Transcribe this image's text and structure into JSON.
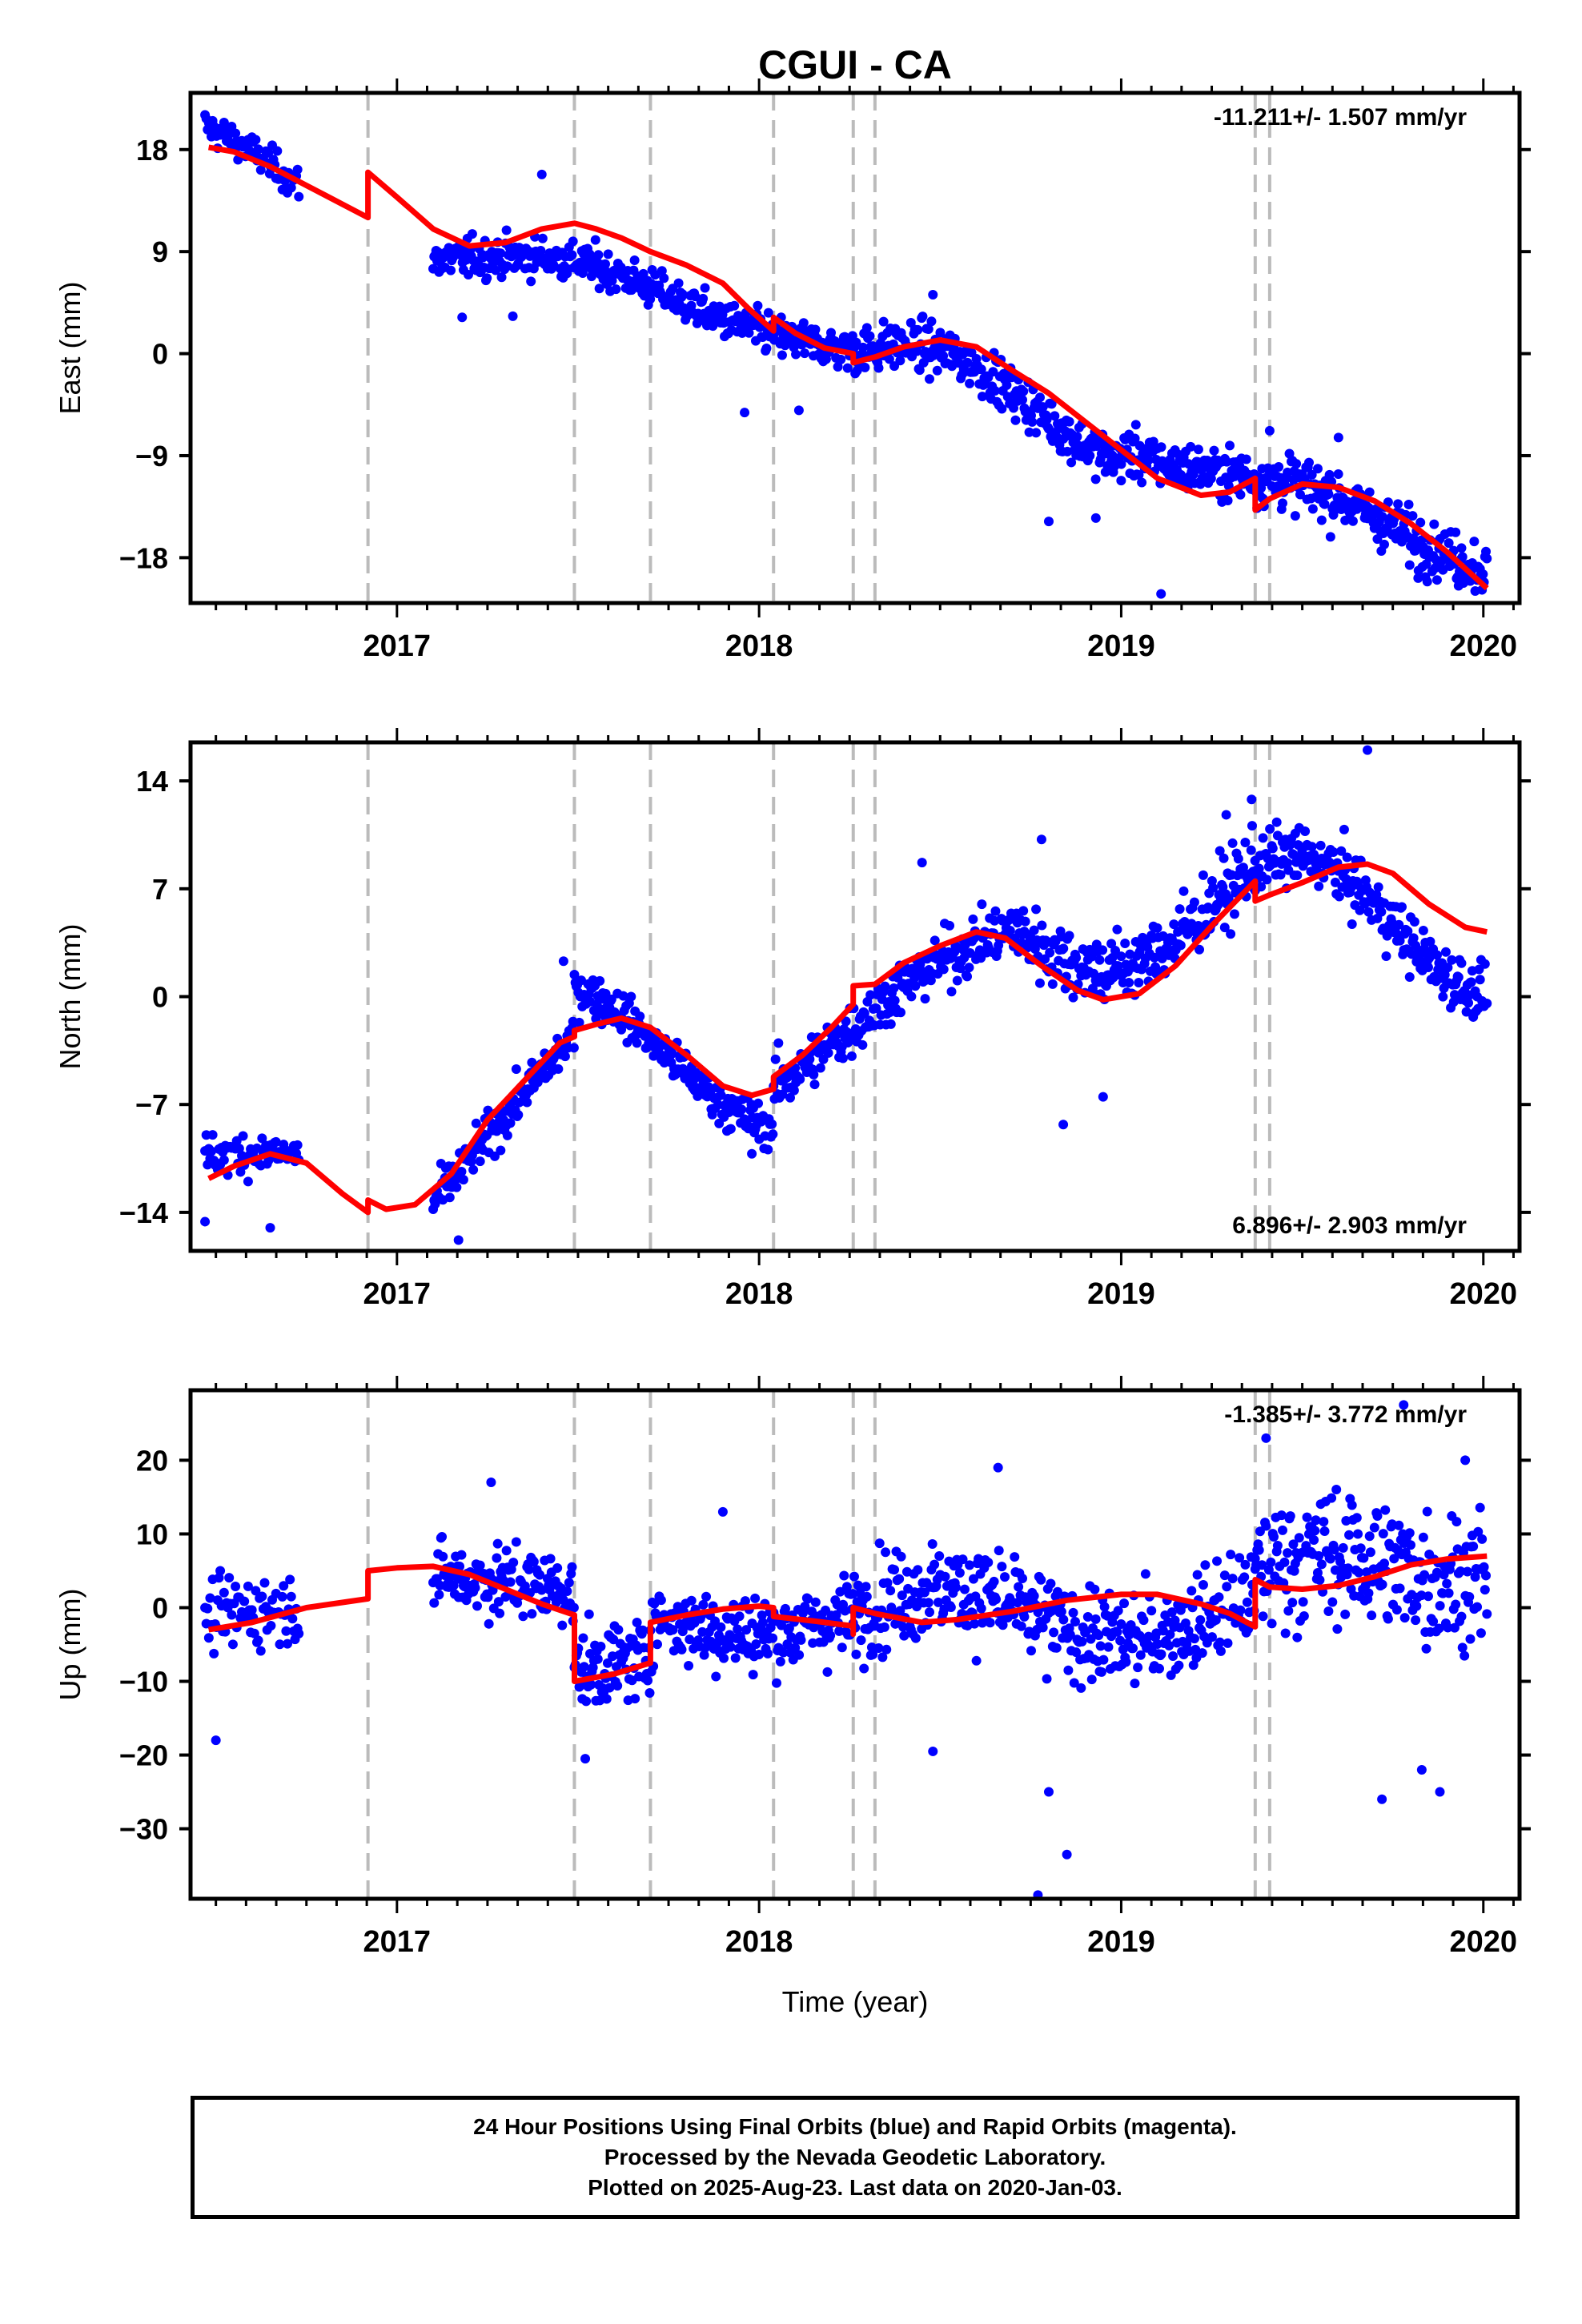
{
  "title": "CGUI - CA",
  "x_axis_label": "Time (year)",
  "footer": [
    "24 Hour Positions Using Final Orbits (blue) and Rapid Orbits (magenta).",
    "Processed by the Nevada Geodetic Laboratory.",
    "Plotted on 2025-Aug-23. Last data on 2020-Jan-03."
  ],
  "colors": {
    "data_points": "#0000ff",
    "model_fit": "#ff0000",
    "event_lines": "#bbbbbb",
    "frame": "#000000"
  },
  "chart_data": [
    {
      "type": "scatter",
      "component": "east",
      "ylabel": "East (mm)",
      "xlabel": "",
      "xlim": [
        2016.43,
        2020.1
      ],
      "ylim": [
        -22,
        23
      ],
      "x_ticks": [
        2017,
        2018,
        2019,
        2020
      ],
      "y_ticks": [
        18,
        9,
        0,
        -9,
        -18
      ],
      "rate_label": "-11.211+/- 1.507 mm/yr",
      "rate_position": "top-right",
      "event_lines": [
        2016.92,
        2017.49,
        2017.7,
        2018.04,
        2018.26,
        2018.32,
        2019.37,
        2019.41
      ],
      "model": [
        [
          2016.48,
          18.2
        ],
        [
          2016.55,
          17.8
        ],
        [
          2016.65,
          16.5
        ],
        [
          2016.8,
          14.0
        ],
        [
          2016.92,
          12.0
        ],
        [
          2016.92,
          16.0
        ],
        [
          2017.0,
          13.8
        ],
        [
          2017.1,
          11.0
        ],
        [
          2017.2,
          9.5
        ],
        [
          2017.3,
          9.8
        ],
        [
          2017.4,
          11.0
        ],
        [
          2017.49,
          11.5
        ],
        [
          2017.55,
          11.0
        ],
        [
          2017.62,
          10.2
        ],
        [
          2017.7,
          9.0
        ],
        [
          2017.8,
          7.8
        ],
        [
          2017.9,
          6.2
        ],
        [
          2017.97,
          4.0
        ],
        [
          2018.04,
          2.0
        ],
        [
          2018.04,
          3.2
        ],
        [
          2018.1,
          1.8
        ],
        [
          2018.18,
          0.5
        ],
        [
          2018.26,
          0.0
        ],
        [
          2018.26,
          -0.8
        ],
        [
          2018.32,
          -0.3
        ],
        [
          2018.4,
          0.6
        ],
        [
          2018.5,
          1.2
        ],
        [
          2018.6,
          0.6
        ],
        [
          2018.7,
          -1.5
        ],
        [
          2018.8,
          -3.5
        ],
        [
          2018.9,
          -6.0
        ],
        [
          2019.0,
          -8.5
        ],
        [
          2019.1,
          -11.0
        ],
        [
          2019.22,
          -12.5
        ],
        [
          2019.3,
          -12.2
        ],
        [
          2019.37,
          -11.0
        ],
        [
          2019.37,
          -13.8
        ],
        [
          2019.41,
          -12.8
        ],
        [
          2019.5,
          -11.5
        ],
        [
          2019.6,
          -11.8
        ],
        [
          2019.7,
          -13.0
        ],
        [
          2019.8,
          -15.0
        ],
        [
          2019.9,
          -17.5
        ],
        [
          2020.01,
          -20.7
        ]
      ],
      "segments": [
        {
          "x": [
            2016.47,
            2016.73
          ],
          "trend": [
            18.6,
            14.6
          ],
          "season_amp": 1.5,
          "noise": 1.4,
          "step": 0.0035
        },
        {
          "x": [
            2017.1,
            2017.98
          ],
          "trend": [
            9.5,
            3.5
          ],
          "season_amp": 1.3,
          "noise": 1.6,
          "step": 0.0027
        },
        {
          "x": [
            2017.98,
            2018.26
          ],
          "trend": [
            3.0,
            0.3
          ],
          "season_amp": 0.8,
          "noise": 1.7,
          "step": 0.0027
        },
        {
          "x": [
            2018.26,
            2019.0
          ],
          "trend": [
            0.0,
            -7.0
          ],
          "season_amp": 2.5,
          "noise": 2.0,
          "step": 0.0027
        },
        {
          "x": [
            2019.0,
            2019.37
          ],
          "trend": [
            -7.0,
            -12.0
          ],
          "season_amp": 1.5,
          "noise": 2.0,
          "step": 0.0027
        },
        {
          "x": [
            2019.37,
            2020.01
          ],
          "trend": [
            -12.0,
            -17.5
          ],
          "season_amp": 1.5,
          "noise": 2.2,
          "step": 0.0027
        }
      ],
      "outliers": [
        [
          2017.96,
          -5.2
        ],
        [
          2018.11,
          -5.0
        ],
        [
          2018.8,
          -14.8
        ],
        [
          2018.93,
          -14.5
        ],
        [
          2019.11,
          -21.2
        ],
        [
          2019.41,
          -6.8
        ],
        [
          2019.6,
          -7.4
        ],
        [
          2019.82,
          -19.8
        ],
        [
          2017.18,
          3.2
        ],
        [
          2017.32,
          3.3
        ],
        [
          2017.4,
          15.8
        ],
        [
          2018.48,
          5.2
        ]
      ]
    },
    {
      "type": "scatter",
      "component": "north",
      "ylabel": "North (mm)",
      "xlabel": "",
      "xlim": [
        2016.43,
        2020.1
      ],
      "ylim": [
        -16.5,
        16.5
      ],
      "x_ticks": [
        2017,
        2018,
        2019,
        2020
      ],
      "y_ticks": [
        14,
        7,
        0,
        -7,
        -14
      ],
      "rate_label": "6.896+/- 2.903 mm/yr",
      "rate_position": "bottom-right",
      "event_lines": [
        2016.92,
        2017.49,
        2017.7,
        2018.04,
        2018.26,
        2018.32,
        2019.37,
        2019.41
      ],
      "model": [
        [
          2016.48,
          -11.8
        ],
        [
          2016.55,
          -11.0
        ],
        [
          2016.65,
          -10.2
        ],
        [
          2016.75,
          -10.8
        ],
        [
          2016.85,
          -12.8
        ],
        [
          2016.92,
          -14.0
        ],
        [
          2016.92,
          -13.2
        ],
        [
          2016.97,
          -13.8
        ],
        [
          2017.05,
          -13.5
        ],
        [
          2017.15,
          -11.5
        ],
        [
          2017.25,
          -8.0
        ],
        [
          2017.35,
          -5.5
        ],
        [
          2017.45,
          -3.0
        ],
        [
          2017.49,
          -2.6
        ],
        [
          2017.49,
          -2.2
        ],
        [
          2017.55,
          -1.8
        ],
        [
          2017.62,
          -1.4
        ],
        [
          2017.7,
          -2.0
        ],
        [
          2017.8,
          -3.8
        ],
        [
          2017.9,
          -5.8
        ],
        [
          2017.98,
          -6.4
        ],
        [
          2018.04,
          -6.0
        ],
        [
          2018.04,
          -5.2
        ],
        [
          2018.12,
          -3.8
        ],
        [
          2018.2,
          -2.0
        ],
        [
          2018.26,
          -0.5
        ],
        [
          2018.26,
          0.7
        ],
        [
          2018.32,
          0.8
        ],
        [
          2018.4,
          2.2
        ],
        [
          2018.5,
          3.3
        ],
        [
          2018.6,
          4.2
        ],
        [
          2018.68,
          3.8
        ],
        [
          2018.78,
          2.0
        ],
        [
          2018.88,
          0.4
        ],
        [
          2018.95,
          -0.2
        ],
        [
          2019.05,
          0.2
        ],
        [
          2019.15,
          2.0
        ],
        [
          2019.25,
          4.6
        ],
        [
          2019.37,
          7.5
        ],
        [
          2019.37,
          6.2
        ],
        [
          2019.41,
          6.6
        ],
        [
          2019.5,
          7.4
        ],
        [
          2019.6,
          8.4
        ],
        [
          2019.68,
          8.6
        ],
        [
          2019.75,
          8.0
        ],
        [
          2019.85,
          6.0
        ],
        [
          2019.95,
          4.5
        ],
        [
          2020.01,
          4.2
        ]
      ],
      "segments": [
        {
          "x": [
            2016.47,
            2016.73
          ],
          "trend": [
            -10.8,
            -10.3
          ],
          "season_amp": 0.5,
          "noise": 1.3,
          "step": 0.0035
        },
        {
          "x": [
            2017.1,
            2017.49
          ],
          "trend": [
            -13.0,
            -3.0
          ],
          "season_amp": 0.5,
          "noise": 1.3,
          "step": 0.0027
        },
        {
          "x": [
            2017.49,
            2018.04
          ],
          "trend": [
            -2.0,
            -6.0
          ],
          "season_amp": 2.5,
          "noise": 1.3,
          "step": 0.0027
        },
        {
          "x": [
            2018.04,
            2018.7
          ],
          "trend": [
            -5.0,
            4.0
          ],
          "season_amp": 1.0,
          "noise": 1.7,
          "step": 0.0027
        },
        {
          "x": [
            2018.7,
            2019.37
          ],
          "trend": [
            3.5,
            6.5
          ],
          "season_amp": 3.0,
          "noise": 2.2,
          "step": 0.0027
        },
        {
          "x": [
            2019.37,
            2020.01
          ],
          "trend": [
            6.0,
            3.8
          ],
          "season_amp": 3.5,
          "noise": 1.8,
          "step": 0.0027
        }
      ],
      "outliers": [
        [
          2019.68,
          16.0
        ],
        [
          2019.36,
          12.8
        ],
        [
          2019.29,
          11.8
        ],
        [
          2018.78,
          10.2
        ],
        [
          2017.46,
          2.3
        ],
        [
          2018.84,
          -8.3
        ],
        [
          2017.98,
          -10.2
        ],
        [
          2017.17,
          -15.8
        ],
        [
          2016.47,
          -14.6
        ],
        [
          2016.65,
          -15.0
        ],
        [
          2018.45,
          8.7
        ],
        [
          2018.95,
          -6.5
        ]
      ]
    },
    {
      "type": "scatter",
      "component": "up",
      "ylabel": "Up (mm)",
      "xlabel": "Time (year)",
      "xlim": [
        2016.43,
        2020.1
      ],
      "ylim": [
        -39.5,
        29.5
      ],
      "x_ticks": [
        2017,
        2018,
        2019,
        2020
      ],
      "y_ticks": [
        20,
        10,
        0,
        -10,
        -20,
        -30
      ],
      "rate_label": "-1.385+/- 3.772 mm/yr",
      "rate_position": "top-right",
      "event_lines": [
        2016.92,
        2017.49,
        2017.7,
        2018.04,
        2018.26,
        2018.32,
        2019.37,
        2019.41
      ],
      "model": [
        [
          2016.48,
          -3.0
        ],
        [
          2016.6,
          -2.0
        ],
        [
          2016.75,
          0.0
        ],
        [
          2016.92,
          1.2
        ],
        [
          2016.92,
          5.0
        ],
        [
          2017.0,
          5.4
        ],
        [
          2017.1,
          5.6
        ],
        [
          2017.2,
          4.5
        ],
        [
          2017.3,
          2.5
        ],
        [
          2017.4,
          0.5
        ],
        [
          2017.49,
          -1.0
        ],
        [
          2017.49,
          -10.0
        ],
        [
          2017.6,
          -9.0
        ],
        [
          2017.7,
          -7.5
        ],
        [
          2017.7,
          -2.0
        ],
        [
          2017.8,
          -1.0
        ],
        [
          2017.9,
          -0.2
        ],
        [
          2018.0,
          0.2
        ],
        [
          2018.04,
          0.0
        ],
        [
          2018.04,
          -1.2
        ],
        [
          2018.15,
          -1.8
        ],
        [
          2018.26,
          -2.5
        ],
        [
          2018.26,
          -3.6
        ],
        [
          2018.26,
          0.0
        ],
        [
          2018.32,
          -0.8
        ],
        [
          2018.45,
          -2.0
        ],
        [
          2018.55,
          -1.6
        ],
        [
          2018.7,
          -0.5
        ],
        [
          2018.85,
          1.0
        ],
        [
          2019.0,
          1.8
        ],
        [
          2019.1,
          1.8
        ],
        [
          2019.22,
          0.5
        ],
        [
          2019.3,
          -0.8
        ],
        [
          2019.37,
          -2.6
        ],
        [
          2019.37,
          3.8
        ],
        [
          2019.41,
          2.8
        ],
        [
          2019.5,
          2.5
        ],
        [
          2019.6,
          3.0
        ],
        [
          2019.7,
          4.2
        ],
        [
          2019.8,
          5.8
        ],
        [
          2019.9,
          6.6
        ],
        [
          2020.01,
          7.0
        ]
      ],
      "segments": [
        {
          "x": [
            2016.47,
            2016.73
          ],
          "trend": [
            -2.5,
            0.0
          ],
          "season_amp": 1.0,
          "noise": 4.5,
          "step": 0.0035
        },
        {
          "x": [
            2017.1,
            2017.49
          ],
          "trend": [
            6.0,
            0.0
          ],
          "season_amp": 2.0,
          "noise": 4.5,
          "step": 0.0027
        },
        {
          "x": [
            2017.49,
            2017.7
          ],
          "trend": [
            -10.0,
            -7.0
          ],
          "season_amp": 1.0,
          "noise": 5.0,
          "step": 0.0027
        },
        {
          "x": [
            2017.7,
            2018.26
          ],
          "trend": [
            -2.0,
            -1.0
          ],
          "season_amp": 2.0,
          "noise": 5.0,
          "step": 0.0027
        },
        {
          "x": [
            2018.26,
            2019.37
          ],
          "trend": [
            -1.0,
            -1.0
          ],
          "season_amp": 3.5,
          "noise": 6.0,
          "step": 0.0027
        },
        {
          "x": [
            2019.37,
            2020.01
          ],
          "trend": [
            3.0,
            7.0
          ],
          "season_amp": 3.0,
          "noise": 8.5,
          "step": 0.0027
        }
      ],
      "outliers": [
        [
          2016.5,
          -18.0
        ],
        [
          2017.26,
          17.0
        ],
        [
          2017.9,
          13.0
        ],
        [
          2018.66,
          19.0
        ],
        [
          2018.77,
          -39.0
        ],
        [
          2018.85,
          -33.5
        ],
        [
          2018.8,
          -25.0
        ],
        [
          2019.72,
          -26.0
        ],
        [
          2019.78,
          27.5
        ],
        [
          2019.88,
          -25.0
        ],
        [
          2019.83,
          -22.0
        ],
        [
          2019.4,
          23.0
        ],
        [
          2017.52,
          -20.5
        ],
        [
          2018.48,
          -19.5
        ],
        [
          2019.95,
          20.0
        ]
      ]
    }
  ]
}
